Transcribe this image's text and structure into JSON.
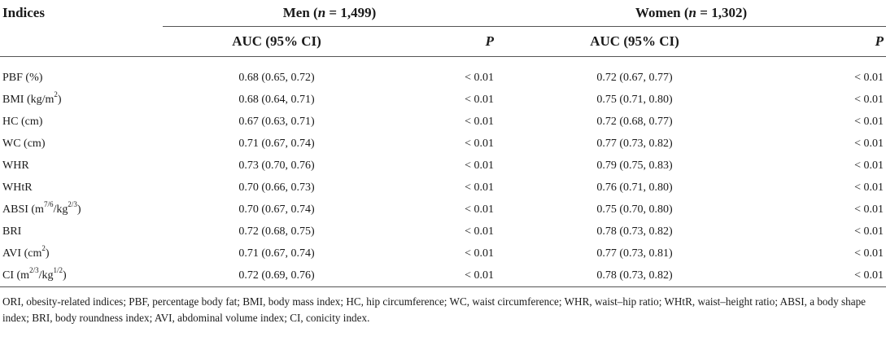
{
  "header": {
    "indices_label": "Indices",
    "men_label": "Men (",
    "men_n": "n",
    "men_count": " = 1,499)",
    "women_label": "Women (",
    "women_n": "n",
    "women_count": " = 1,302)",
    "auc_label": "AUC (95% CI)",
    "p_label": "P"
  },
  "rows": [
    {
      "base": "PBF (%)",
      "sup1": "",
      "mid": "",
      "sup2": "",
      "tail": "",
      "men_auc": "0.68 (0.65, 0.72)",
      "men_p": "< 0.01",
      "women_auc": "0.72 (0.67, 0.77)",
      "women_p": "< 0.01"
    },
    {
      "base": "BMI (kg/m",
      "sup1": "2",
      "mid": ")",
      "sup2": "",
      "tail": "",
      "men_auc": "0.68 (0.64, 0.71)",
      "men_p": "< 0.01",
      "women_auc": "0.75 (0.71, 0.80)",
      "women_p": "< 0.01"
    },
    {
      "base": "HC (cm)",
      "sup1": "",
      "mid": "",
      "sup2": "",
      "tail": "",
      "men_auc": "0.67 (0.63, 0.71)",
      "men_p": "< 0.01",
      "women_auc": "0.72 (0.68, 0.77)",
      "women_p": "< 0.01"
    },
    {
      "base": "WC (cm)",
      "sup1": "",
      "mid": "",
      "sup2": "",
      "tail": "",
      "men_auc": "0.71 (0.67, 0.74)",
      "men_p": "< 0.01",
      "women_auc": "0.77 (0.73, 0.82)",
      "women_p": "< 0.01"
    },
    {
      "base": "WHR",
      "sup1": "",
      "mid": "",
      "sup2": "",
      "tail": "",
      "men_auc": "0.73 (0.70, 0.76)",
      "men_p": "< 0.01",
      "women_auc": "0.79 (0.75, 0.83)",
      "women_p": "< 0.01"
    },
    {
      "base": "WHtR",
      "sup1": "",
      "mid": "",
      "sup2": "",
      "tail": "",
      "men_auc": "0.70 (0.66, 0.73)",
      "men_p": "< 0.01",
      "women_auc": "0.76 (0.71, 0.80)",
      "women_p": "< 0.01"
    },
    {
      "base": "ABSI (m",
      "sup1": "7/6",
      "mid": "/kg",
      "sup2": "2/3",
      "tail": ")",
      "men_auc": "0.70 (0.67, 0.74)",
      "men_p": "< 0.01",
      "women_auc": "0.75 (0.70, 0.80)",
      "women_p": "< 0.01"
    },
    {
      "base": "BRI",
      "sup1": "",
      "mid": "",
      "sup2": "",
      "tail": "",
      "men_auc": "0.72 (0.68, 0.75)",
      "men_p": "< 0.01",
      "women_auc": "0.78 (0.73, 0.82)",
      "women_p": "< 0.01"
    },
    {
      "base": "AVI (cm",
      "sup1": "2",
      "mid": ")",
      "sup2": "",
      "tail": "",
      "men_auc": "0.71 (0.67, 0.74)",
      "men_p": "< 0.01",
      "women_auc": "0.77 (0.73, 0.81)",
      "women_p": "< 0.01"
    },
    {
      "base": "CI (m",
      "sup1": "2/3",
      "mid": "/kg",
      "sup2": "1/2",
      "tail": ")",
      "men_auc": "0.72 (0.69, 0.76)",
      "men_p": "< 0.01",
      "women_auc": "0.78 (0.73, 0.82)",
      "women_p": "< 0.01"
    }
  ],
  "footnote": "ORI, obesity-related indices; PBF, percentage body fat; BMI, body mass index; HC, hip circumference; WC, waist circumference; WHR, waist–hip ratio; WHtR, waist–height ratio; ABSI, a body shape index; BRI, body roundness index; AVI, abdominal volume index; CI, conicity index."
}
